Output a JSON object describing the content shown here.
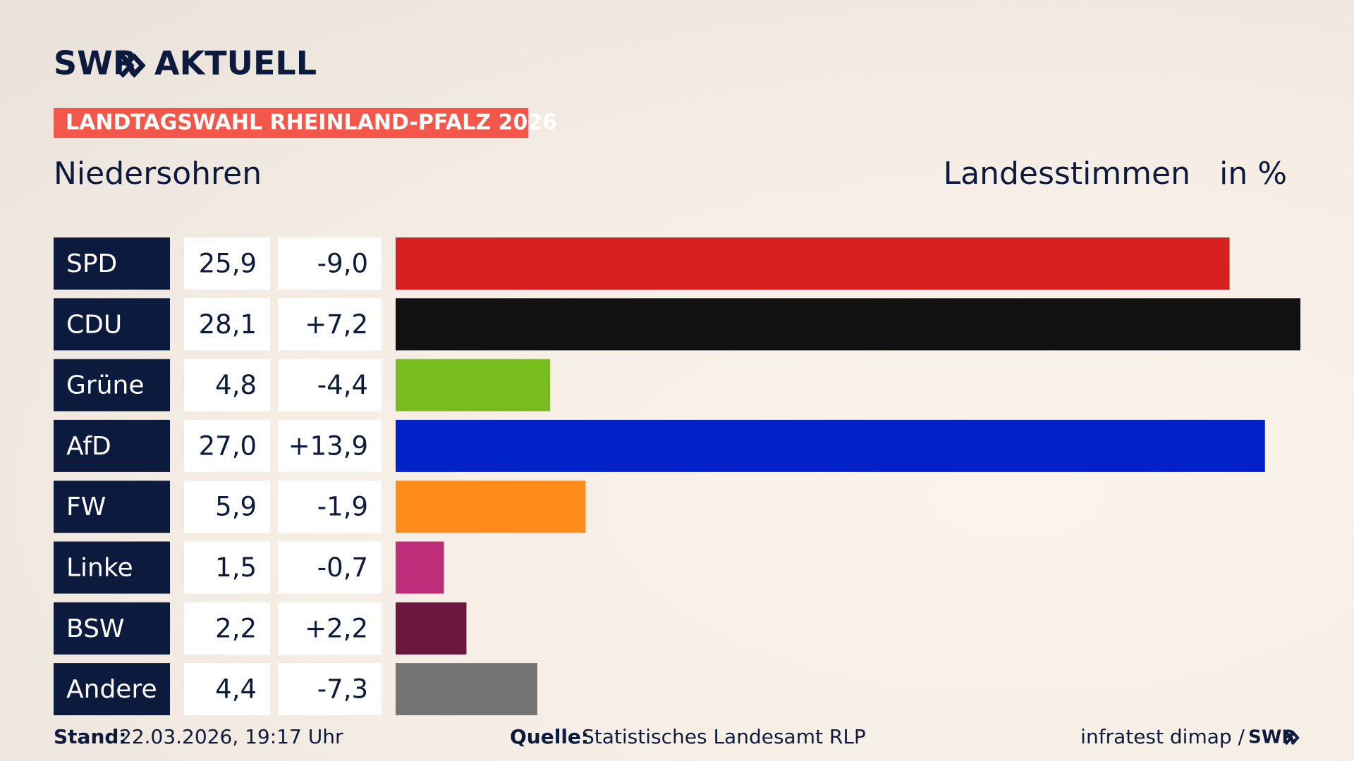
{
  "chart_data": {
    "type": "bar",
    "brand": "SWR",
    "brand_section": "AKTUELL",
    "kicker": "LANDTAGSWAHL RHEINLAND-PFALZ 2026",
    "title": "Niedersohren",
    "subtitle": "Landesstimmen",
    "unit": "in %",
    "categories": [
      "SPD",
      "CDU",
      "Grüne",
      "AfD",
      "FW",
      "Linke",
      "BSW",
      "Andere"
    ],
    "values": [
      25.9,
      28.1,
      4.8,
      27.0,
      5.9,
      1.5,
      2.2,
      4.4
    ],
    "value_labels": [
      "25,9",
      "28,1",
      "4,8",
      "27,0",
      "5,9",
      "1,5",
      "2,2",
      "4,4"
    ],
    "changes": {
      "values": [
        -9.0,
        7.2,
        -4.4,
        13.9,
        -1.9,
        -0.7,
        2.2,
        -7.3
      ],
      "value_labels": [
        "-9,0",
        "+7,2",
        "-4,4",
        "+13,9",
        "-1,9",
        "-0,7",
        "+2,2",
        "-7,3"
      ]
    },
    "colors": [
      "#d61f1f",
      "#111111",
      "#78bc1e",
      "#0022c8",
      "#ff8c1a",
      "#be2d79",
      "#6b1740",
      "#737373"
    ],
    "footer": {
      "stand_label": "Stand:",
      "stand": "22.03.2026, 19:17 Uhr",
      "source_label": "Quelle:",
      "source": "Statistisches Landesamt RLP",
      "credit": "infratest dimap /",
      "credit_brand": "SWR"
    }
  }
}
